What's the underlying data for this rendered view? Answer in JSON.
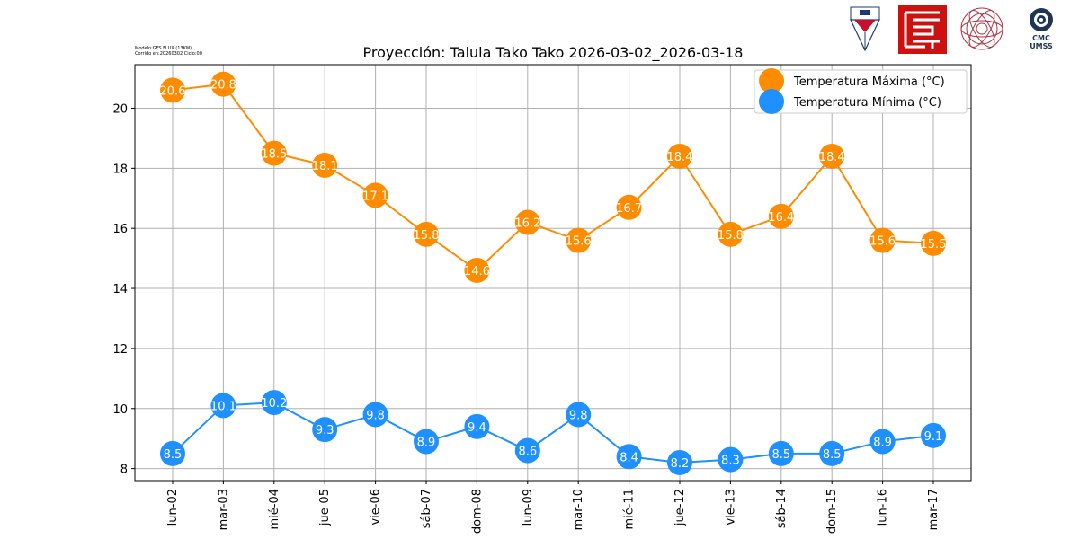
{
  "header": {
    "model_line1": "Modelo:GFS FLUX (13KM)",
    "model_line2": "Corrido en:20260302 Ciclo:00"
  },
  "logos": {
    "umss_crest": "umss-crest-logo",
    "fcyt_logo": "red-square-logo",
    "seal": "institution-seal-logo",
    "cmc_text_1": "CMC",
    "cmc_text_2": "UMSS"
  },
  "chart_data": {
    "type": "line",
    "title": "Proyección: Talula Tako Tako 2026-03-02_2026-03-18",
    "xlabel": "",
    "ylabel": "",
    "categories": [
      "lun-02",
      "mar-03",
      "mié-04",
      "jue-05",
      "vie-06",
      "sáb-07",
      "dom-08",
      "lun-09",
      "mar-10",
      "mié-11",
      "jue-12",
      "vie-13",
      "sáb-14",
      "dom-15",
      "lun-16",
      "mar-17"
    ],
    "series": [
      {
        "name": "Temperatura Máxima  (°C)",
        "color": "#ff8c00",
        "values": [
          20.6,
          20.8,
          18.5,
          18.1,
          17.1,
          15.8,
          14.6,
          16.2,
          15.6,
          16.7,
          18.4,
          15.8,
          16.4,
          18.4,
          15.6,
          15.5
        ],
        "labels": [
          "20.6",
          "20.8",
          "18.5",
          "18.1",
          "17.1",
          "15.8",
          "14.6",
          "16.2",
          "15.6",
          "16.7",
          "18.4",
          "15.8",
          "16.4",
          "18.4",
          "15.6",
          "15.5"
        ]
      },
      {
        "name": "Temperatura Mínima  (°C)",
        "color": "#1e90ff",
        "values": [
          8.5,
          10.1,
          10.2,
          9.3,
          9.8,
          8.9,
          9.4,
          8.6,
          9.8,
          8.4,
          8.2,
          8.3,
          8.5,
          8.5,
          8.9,
          9.1
        ],
        "labels": [
          "8.5",
          "10.1",
          "10.2",
          "9.3",
          "9.8",
          "8.9",
          "9.4",
          "8.6",
          "9.8",
          "8.4",
          "8.2",
          "8.3",
          "8.5",
          "8.5",
          "8.9",
          "9.1"
        ]
      }
    ],
    "yticks": [
      "8",
      "10",
      "12",
      "14",
      "16",
      "18",
      "20"
    ],
    "ylim": [
      7.6,
      21.45
    ],
    "grid": true,
    "legend_position": "top-right"
  }
}
